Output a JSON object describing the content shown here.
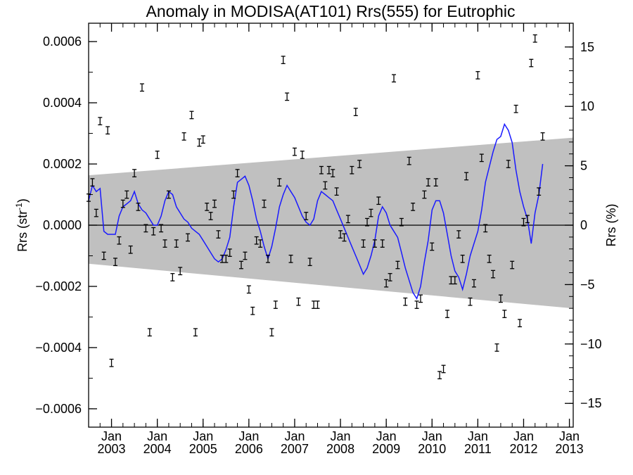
{
  "chart_data": {
    "type": "scatter",
    "title": "Anomaly in MODISA(AT101) Rrs(555) for Eutrophic",
    "ylabel_main": "Rrs (str",
    "ylabel_sup": "-1",
    "ylabel_close": ")",
    "ylabel_right": "Rrs (%)",
    "ylim": [
      -0.00066,
      0.00066
    ],
    "ylim_right": [
      -17,
      17
    ],
    "xlim": [
      "2002-07",
      "2013-02"
    ],
    "y_ticks": [
      {
        "v": 0.0006,
        "label": "0.0006"
      },
      {
        "v": 0.0004,
        "label": "0.0004"
      },
      {
        "v": 0.0002,
        "label": "0.0002"
      },
      {
        "v": 0.0,
        "label": "0.0000"
      },
      {
        "v": -0.0002,
        "label": "−0.0002"
      },
      {
        "v": -0.0004,
        "label": "−0.0004"
      },
      {
        "v": -0.0006,
        "label": "−0.0006"
      }
    ],
    "y_ticks_right": [
      {
        "v": 15,
        "label": "15"
      },
      {
        "v": 10,
        "label": "10"
      },
      {
        "v": 5,
        "label": "5"
      },
      {
        "v": 0,
        "label": "0"
      },
      {
        "v": -5,
        "label": "−5"
      },
      {
        "v": -10,
        "label": "−10"
      },
      {
        "v": -15,
        "label": "−15"
      }
    ],
    "x_ticks": [
      {
        "year": 2003,
        "month": "Jan",
        "label": "2003"
      },
      {
        "year": 2004,
        "month": "Jan",
        "label": "2004"
      },
      {
        "year": 2005,
        "month": "Jan",
        "label": "2005"
      },
      {
        "year": 2006,
        "month": "Jan",
        "label": "2006"
      },
      {
        "year": 2007,
        "month": "Jan",
        "label": "2007"
      },
      {
        "year": 2008,
        "month": "Jan",
        "label": "2008"
      },
      {
        "year": 2009,
        "month": "Jan",
        "label": "2009"
      },
      {
        "year": 2010,
        "month": "Jan",
        "label": "2010"
      },
      {
        "year": 2011,
        "month": "Jan",
        "label": "2011"
      },
      {
        "year": 2012,
        "month": "Jan",
        "label": "2012"
      },
      {
        "year": 2013,
        "month": "Jan",
        "label": "2013"
      }
    ],
    "band": {
      "start": {
        "date": "2002-07",
        "upper": 0.000163,
        "lower": -0.000126
      },
      "end": {
        "date": "2013-02",
        "upper": 0.000286,
        "lower": -0.000272
      }
    },
    "error_bar_halfwidth": 1.2e-05,
    "anomaly_points": [
      [
        "2002-07",
        9e-05
      ],
      [
        "2002-08",
        0.00014
      ],
      [
        "2002-09",
        4e-05
      ],
      [
        "2002-10",
        0.00034
      ],
      [
        "2002-11",
        -0.0001
      ],
      [
        "2002-12",
        0.00031
      ],
      [
        "2003-01",
        -0.00045
      ],
      [
        "2003-02",
        -0.00012
      ],
      [
        "2003-03",
        -5e-05
      ],
      [
        "2003-04",
        7e-05
      ],
      [
        "2003-05",
        0.0001
      ],
      [
        "2003-06",
        -8e-05
      ],
      [
        "2003-07",
        0.00017
      ],
      [
        "2003-08",
        6e-05
      ],
      [
        "2003-09",
        0.00045
      ],
      [
        "2003-10",
        -1e-05
      ],
      [
        "2003-11",
        -0.00035
      ],
      [
        "2003-12",
        -2e-05
      ],
      [
        "2004-01",
        0.00023
      ],
      [
        "2004-02",
        -1e-05
      ],
      [
        "2004-03",
        -6e-05
      ],
      [
        "2004-04",
        0.0001
      ],
      [
        "2004-05",
        -0.00017
      ],
      [
        "2004-06",
        -6e-05
      ],
      [
        "2004-07",
        -0.00015
      ],
      [
        "2004-08",
        0.00029
      ],
      [
        "2004-09",
        -4e-05
      ],
      [
        "2004-10",
        0.00036
      ],
      [
        "2004-11",
        -0.00035
      ],
      [
        "2004-12",
        0.00027
      ],
      [
        "2005-01",
        0.00028
      ],
      [
        "2005-02",
        6e-05
      ],
      [
        "2005-03",
        3e-05
      ],
      [
        "2005-04",
        7e-05
      ],
      [
        "2005-05",
        -3e-05
      ],
      [
        "2005-06",
        -0.00011
      ],
      [
        "2005-07",
        -0.00011
      ],
      [
        "2005-08",
        -9e-05
      ],
      [
        "2005-09",
        0.0001
      ],
      [
        "2005-10",
        0.00017
      ],
      [
        "2005-11",
        -0.00013
      ],
      [
        "2005-12",
        -0.0001
      ],
      [
        "2006-01",
        -0.00021
      ],
      [
        "2006-02",
        -0.00028
      ],
      [
        "2006-03",
        -5e-05
      ],
      [
        "2006-04",
        -6e-05
      ],
      [
        "2006-05",
        7e-05
      ],
      [
        "2006-06",
        -0.00011
      ],
      [
        "2006-07",
        -0.00035
      ],
      [
        "2006-08",
        -0.00026
      ],
      [
        "2006-09",
        0.00014
      ],
      [
        "2006-10",
        0.00054
      ],
      [
        "2006-11",
        0.00042
      ],
      [
        "2006-12",
        -0.00011
      ],
      [
        "2007-01",
        0.00024
      ],
      [
        "2007-02",
        -0.00025
      ],
      [
        "2007-03",
        0.00023
      ],
      [
        "2007-04",
        3e-05
      ],
      [
        "2007-05",
        -0.00012
      ],
      [
        "2007-06",
        -0.00026
      ],
      [
        "2007-07",
        -0.00026
      ],
      [
        "2007-08",
        0.00018
      ],
      [
        "2007-09",
        0.00013
      ],
      [
        "2007-10",
        0.00018
      ],
      [
        "2007-11",
        0.00017
      ],
      [
        "2007-12",
        0.00011
      ],
      [
        "2008-01",
        -3e-05
      ],
      [
        "2008-02",
        -4e-05
      ],
      [
        "2008-03",
        2e-05
      ],
      [
        "2008-04",
        0.00018
      ],
      [
        "2008-05",
        0.00037
      ],
      [
        "2008-06",
        0.0002
      ],
      [
        "2008-07",
        -6e-05
      ],
      [
        "2008-08",
        1e-05
      ],
      [
        "2008-09",
        4e-05
      ],
      [
        "2008-10",
        -6e-05
      ],
      [
        "2008-11",
        8e-05
      ],
      [
        "2008-12",
        -6e-05
      ],
      [
        "2009-01",
        -0.00019
      ],
      [
        "2009-02",
        -0.00017
      ],
      [
        "2009-03",
        0.00048
      ],
      [
        "2009-04",
        -0.00013
      ],
      [
        "2009-05",
        1e-05
      ],
      [
        "2009-06",
        -0.00025
      ],
      [
        "2009-07",
        0.00021
      ],
      [
        "2009-08",
        6e-05
      ],
      [
        "2009-09",
        -0.00026
      ],
      [
        "2009-10",
        -0.00024
      ],
      [
        "2009-11",
        0.0001
      ],
      [
        "2009-12",
        0.00014
      ],
      [
        "2010-01",
        -7e-05
      ],
      [
        "2010-02",
        0.00014
      ],
      [
        "2010-03",
        -0.00049
      ],
      [
        "2010-04",
        -0.00047
      ],
      [
        "2010-05",
        -0.00029
      ],
      [
        "2010-06",
        -0.00018
      ],
      [
        "2010-07",
        -0.00018
      ],
      [
        "2010-08",
        -3e-05
      ],
      [
        "2010-09",
        -0.00011
      ],
      [
        "2010-10",
        0.00016
      ],
      [
        "2010-11",
        -0.00025
      ],
      [
        "2010-12",
        -0.00019
      ],
      [
        "2011-01",
        0.00049
      ],
      [
        "2011-02",
        0.00022
      ],
      [
        "2011-03",
        -1e-05
      ],
      [
        "2011-04",
        -0.00011
      ],
      [
        "2011-05",
        -0.00016
      ],
      [
        "2011-06",
        -0.0004
      ],
      [
        "2011-07",
        -0.00024
      ],
      [
        "2011-08",
        -0.00029
      ],
      [
        "2011-09",
        0.0002
      ],
      [
        "2011-10",
        -0.00013
      ],
      [
        "2011-11",
        0.00038
      ],
      [
        "2011-12",
        -0.00032
      ],
      [
        "2012-01",
        1e-05
      ],
      [
        "2012-02",
        2e-05
      ],
      [
        "2012-03",
        0.00053
      ],
      [
        "2012-04",
        0.00061
      ],
      [
        "2012-05",
        0.00011
      ],
      [
        "2012-06",
        0.00029
      ]
    ],
    "smoothed_series": [
      [
        "2002-07",
        8e-05
      ],
      [
        "2002-08",
        0.00013
      ],
      [
        "2002-09",
        0.00011
      ],
      [
        "2002-10",
        0.00012
      ],
      [
        "2002-11",
        -2e-05
      ],
      [
        "2002-12",
        -3e-05
      ],
      [
        "2003-01",
        -3e-05
      ],
      [
        "2003-02",
        -3e-05
      ],
      [
        "2003-03",
        3e-05
      ],
      [
        "2003-04",
        6e-05
      ],
      [
        "2003-05",
        7e-05
      ],
      [
        "2003-06",
        8e-05
      ],
      [
        "2003-07",
        0.00011
      ],
      [
        "2003-08",
        7e-05
      ],
      [
        "2003-09",
        5e-05
      ],
      [
        "2003-10",
        4e-05
      ],
      [
        "2003-11",
        2e-05
      ],
      [
        "2003-12",
        0.0
      ],
      [
        "2004-01",
        0.0
      ],
      [
        "2004-02",
        3e-05
      ],
      [
        "2004-03",
        8e-05
      ],
      [
        "2004-04",
        0.00011
      ],
      [
        "2004-05",
        0.0001
      ],
      [
        "2004-06",
        6e-05
      ],
      [
        "2004-07",
        4e-05
      ],
      [
        "2004-08",
        2e-05
      ],
      [
        "2004-09",
        1e-05
      ],
      [
        "2004-10",
        -1e-05
      ],
      [
        "2004-11",
        -2e-05
      ],
      [
        "2004-12",
        -3e-05
      ],
      [
        "2005-01",
        -5e-05
      ],
      [
        "2005-02",
        -7e-05
      ],
      [
        "2005-03",
        -9e-05
      ],
      [
        "2005-04",
        -0.00011
      ],
      [
        "2005-05",
        -0.00012
      ],
      [
        "2005-06",
        -0.00011
      ],
      [
        "2005-07",
        -8e-05
      ],
      [
        "2005-08",
        -4e-05
      ],
      [
        "2005-09",
        6e-05
      ],
      [
        "2005-10",
        0.00014
      ],
      [
        "2005-11",
        0.00015
      ],
      [
        "2005-12",
        0.00016
      ],
      [
        "2006-01",
        0.00013
      ],
      [
        "2006-02",
        8e-05
      ],
      [
        "2006-03",
        2e-05
      ],
      [
        "2006-04",
        -2e-05
      ],
      [
        "2006-05",
        -7e-05
      ],
      [
        "2006-06",
        -0.00011
      ],
      [
        "2006-07",
        -7e-05
      ],
      [
        "2006-08",
        -1e-05
      ],
      [
        "2006-09",
        6e-05
      ],
      [
        "2006-10",
        0.0001
      ],
      [
        "2006-11",
        0.00013
      ],
      [
        "2006-12",
        0.00011
      ],
      [
        "2007-01",
        9e-05
      ],
      [
        "2007-02",
        6e-05
      ],
      [
        "2007-03",
        3e-05
      ],
      [
        "2007-04",
        1e-05
      ],
      [
        "2007-05",
        0.0
      ],
      [
        "2007-06",
        2e-05
      ],
      [
        "2007-07",
        8e-05
      ],
      [
        "2007-08",
        0.00011
      ],
      [
        "2007-09",
        0.0001
      ],
      [
        "2007-10",
        9e-05
      ],
      [
        "2007-11",
        8e-05
      ],
      [
        "2007-12",
        5e-05
      ],
      [
        "2008-01",
        2e-05
      ],
      [
        "2008-02",
        -1e-05
      ],
      [
        "2008-03",
        -4e-05
      ],
      [
        "2008-04",
        -7e-05
      ],
      [
        "2008-05",
        -0.0001
      ],
      [
        "2008-06",
        -0.00013
      ],
      [
        "2008-07",
        -0.00016
      ],
      [
        "2008-08",
        -0.00014
      ],
      [
        "2008-09",
        -0.0001
      ],
      [
        "2008-10",
        -5e-05
      ],
      [
        "2008-11",
        3e-05
      ],
      [
        "2008-12",
        6e-05
      ],
      [
        "2009-01",
        4e-05
      ],
      [
        "2009-02",
        0.0
      ],
      [
        "2009-03",
        -2e-05
      ],
      [
        "2009-04",
        -4e-05
      ],
      [
        "2009-05",
        -9e-05
      ],
      [
        "2009-06",
        -0.00014
      ],
      [
        "2009-07",
        -0.00018
      ],
      [
        "2009-08",
        -0.00022
      ],
      [
        "2009-09",
        -0.00024
      ],
      [
        "2009-10",
        -0.0002
      ],
      [
        "2009-11",
        -0.00012
      ],
      [
        "2009-12",
        -5e-05
      ],
      [
        "2010-01",
        5e-05
      ],
      [
        "2010-02",
        8e-05
      ],
      [
        "2010-03",
        8e-05
      ],
      [
        "2010-04",
        4e-05
      ],
      [
        "2010-05",
        -3e-05
      ],
      [
        "2010-06",
        -0.0001
      ],
      [
        "2010-07",
        -0.00015
      ],
      [
        "2010-08",
        -0.00017
      ],
      [
        "2010-09",
        -0.00021
      ],
      [
        "2010-10",
        -0.00016
      ],
      [
        "2010-11",
        -0.0001
      ],
      [
        "2010-12",
        -6e-05
      ],
      [
        "2011-01",
        -2e-05
      ],
      [
        "2011-02",
        5e-05
      ],
      [
        "2011-03",
        0.00014
      ],
      [
        "2011-04",
        0.00019
      ],
      [
        "2011-05",
        0.00024
      ],
      [
        "2011-06",
        0.00028
      ],
      [
        "2011-07",
        0.00029
      ],
      [
        "2011-08",
        0.00033
      ],
      [
        "2011-09",
        0.00031
      ],
      [
        "2011-10",
        0.00027
      ],
      [
        "2011-11",
        0.00018
      ],
      [
        "2011-12",
        0.00011
      ],
      [
        "2012-01",
        6e-05
      ],
      [
        "2012-02",
        2e-05
      ],
      [
        "2012-03",
        -6e-05
      ],
      [
        "2012-04",
        4e-05
      ],
      [
        "2012-05",
        0.0001
      ],
      [
        "2012-06",
        0.0002
      ]
    ],
    "colors": {
      "band": "#c0c0c0",
      "line": "#1a1aff",
      "points": "#000000",
      "axis": "#000000",
      "zero_line": "#000000",
      "background": "#ffffff"
    },
    "grid": false
  }
}
